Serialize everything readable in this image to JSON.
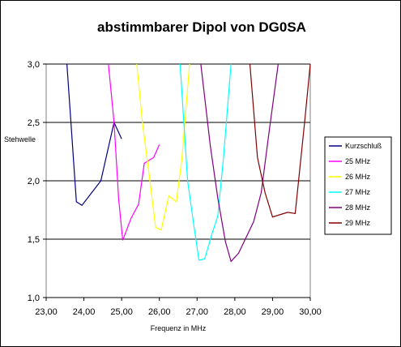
{
  "chart_data": {
    "type": "line",
    "title": "abstimmbarer Dipol von DG0SA",
    "xlabel": "Frequenz in MHz",
    "ylabel": "Stehwelle",
    "xlim": [
      23,
      30
    ],
    "ylim": [
      1.0,
      3.0
    ],
    "x_ticks": [
      "23,00",
      "24,00",
      "25,00",
      "26,00",
      "27,00",
      "28,00",
      "29,00",
      "30,00"
    ],
    "y_ticks": [
      "1,0",
      "1,5",
      "2,0",
      "2,5",
      "3,0"
    ],
    "grid": "horizontal",
    "legend_position": "right",
    "series": [
      {
        "name": "Kurzschluß",
        "color": "#000080",
        "points": [
          [
            23.55,
            3.0
          ],
          [
            23.8,
            1.82
          ],
          [
            23.95,
            1.79
          ],
          [
            24.45,
            2.0
          ],
          [
            24.8,
            2.5
          ],
          [
            25.0,
            2.36
          ]
        ]
      },
      {
        "name": "25 MHz",
        "color": "#ff00ff",
        "points": [
          [
            24.65,
            3.0
          ],
          [
            24.8,
            2.5
          ],
          [
            24.92,
            1.85
          ],
          [
            25.03,
            1.49
          ],
          [
            25.25,
            1.68
          ],
          [
            25.45,
            1.8
          ],
          [
            25.6,
            2.15
          ],
          [
            25.85,
            2.2
          ],
          [
            26.0,
            2.31
          ]
        ]
      },
      {
        "name": "26 MHz",
        "color": "#ffff00",
        "points": [
          [
            25.4,
            3.0
          ],
          [
            25.55,
            2.5
          ],
          [
            25.75,
            2.0
          ],
          [
            25.9,
            1.6
          ],
          [
            26.05,
            1.58
          ],
          [
            26.25,
            1.87
          ],
          [
            26.45,
            1.82
          ],
          [
            26.6,
            2.2
          ],
          [
            26.8,
            3.0
          ]
        ]
      },
      {
        "name": "27 MHz",
        "color": "#00ffff",
        "points": [
          [
            26.55,
            3.0
          ],
          [
            26.75,
            2.0
          ],
          [
            26.9,
            1.65
          ],
          [
            27.05,
            1.32
          ],
          [
            27.2,
            1.33
          ],
          [
            27.4,
            1.55
          ],
          [
            27.55,
            1.7
          ],
          [
            27.7,
            2.2
          ],
          [
            27.9,
            3.0
          ]
        ]
      },
      {
        "name": "28 MHz",
        "color": "#800080",
        "points": [
          [
            27.1,
            3.0
          ],
          [
            27.35,
            2.3
          ],
          [
            27.55,
            1.85
          ],
          [
            27.75,
            1.48
          ],
          [
            27.9,
            1.31
          ],
          [
            28.1,
            1.38
          ],
          [
            28.5,
            1.65
          ],
          [
            28.7,
            1.9
          ],
          [
            28.9,
            2.4
          ],
          [
            29.15,
            3.0
          ]
        ]
      },
      {
        "name": "29 MHz",
        "color": "#800000",
        "points": [
          [
            28.4,
            3.0
          ],
          [
            28.6,
            2.2
          ],
          [
            28.8,
            1.9
          ],
          [
            29.0,
            1.69
          ],
          [
            29.4,
            1.73
          ],
          [
            29.6,
            1.72
          ],
          [
            29.85,
            2.5
          ],
          [
            30.0,
            3.0
          ]
        ]
      }
    ]
  }
}
